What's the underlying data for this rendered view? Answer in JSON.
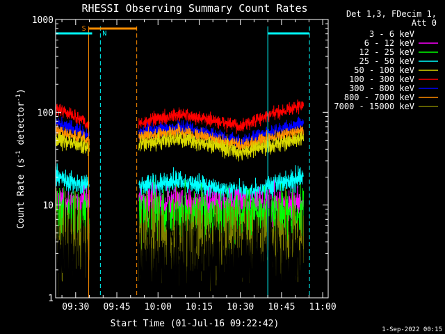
{
  "chart_data": {
    "type": "line",
    "title": "RHESSI Observing Summary Count Rates",
    "xlabel": "Start Time (01-Jul-16 09:22:42)",
    "ylabel": "Count Rate (s",
    "ylabel_sup": "-1",
    "ylabel_tail": " detector",
    "ylabel_sup2": "-1",
    "ylabel_end": ")",
    "yscale": "log",
    "ylim": [
      1,
      1000
    ],
    "y_ticks": [
      {
        "value": 1,
        "label": "1"
      },
      {
        "value": 10,
        "label": "10"
      },
      {
        "value": 100,
        "label": "100"
      },
      {
        "value": 1000,
        "label": "1000"
      }
    ],
    "xlim": [
      "09:22:42",
      "11:02:00"
    ],
    "x_ticks": [
      "09:30",
      "09:45",
      "10:00",
      "10:15",
      "10:30",
      "10:45",
      "11:00"
    ],
    "legend": {
      "placement": "right",
      "header": [
        "Det 1,3, FDecim 1,",
        "Att 0"
      ],
      "entries": [
        {
          "name": "3 - 6 keV",
          "color": "#000000"
        },
        {
          "name": "6 - 12 keV",
          "color": "#ff00ff"
        },
        {
          "name": "12 - 25 keV",
          "color": "#00ff00"
        },
        {
          "name": "25 - 50 keV",
          "color": "#00ffff"
        },
        {
          "name": "50 - 100 keV",
          "color": "#d8d800"
        },
        {
          "name": "100 - 300 keV",
          "color": "#ff0000"
        },
        {
          "name": "300 - 800 keV",
          "color": "#0000ff"
        },
        {
          "name": "800 - 7000 keV",
          "color": "#ff8c00"
        },
        {
          "name": "7000 - 15000 keV",
          "color": "#808000"
        }
      ]
    },
    "segments": [
      {
        "start": "09:22:42",
        "end": "09:35:00"
      },
      {
        "start": "09:53:00",
        "end": "10:53:00"
      }
    ],
    "series": [
      {
        "name": "100 - 300 keV",
        "color": "#ff0000",
        "profile": [
          [
            0,
            110
          ],
          [
            0.5,
            95
          ],
          [
            1,
            75
          ],
          [
            2,
            65
          ],
          [
            4,
            95
          ],
          [
            6,
            70
          ],
          [
            8,
            120
          ]
        ],
        "noise": 0.05
      },
      {
        "name": "300 - 800 keV",
        "color": "#0000ff",
        "profile": [
          [
            0,
            77
          ],
          [
            0.5,
            68
          ],
          [
            1,
            57
          ],
          [
            2,
            55
          ],
          [
            4,
            70
          ],
          [
            6,
            48
          ],
          [
            8,
            76
          ]
        ],
        "noise": 0.05
      },
      {
        "name": "800 - 7000 keV",
        "color": "#ff8c00",
        "profile": [
          [
            0,
            64
          ],
          [
            0.5,
            56
          ],
          [
            1,
            50
          ],
          [
            2,
            50
          ],
          [
            4,
            62
          ],
          [
            6,
            43
          ],
          [
            8,
            64
          ]
        ],
        "noise": 0.05
      },
      {
        "name": "50 - 100 keV",
        "color": "#d8d800",
        "profile": [
          [
            0,
            52
          ],
          [
            0.5,
            46
          ],
          [
            1,
            43
          ],
          [
            2,
            40
          ],
          [
            4,
            52
          ],
          [
            6,
            37
          ],
          [
            8,
            52
          ]
        ],
        "noise": 0.06
      },
      {
        "name": "25 - 50 keV",
        "color": "#00ffff",
        "profile": [
          [
            0,
            20
          ],
          [
            0.5,
            18
          ],
          [
            1,
            16
          ],
          [
            2,
            15
          ],
          [
            4,
            18
          ],
          [
            6,
            13
          ],
          [
            8,
            20
          ]
        ],
        "noise": 0.08
      },
      {
        "name": "6 - 12 keV",
        "color": "#ff00ff",
        "profile": [
          [
            0,
            10
          ],
          [
            8,
            10
          ]
        ],
        "noise": 0.13
      },
      {
        "name": "12 - 25 keV",
        "color": "#00ff00",
        "profile": [
          [
            0,
            7.5
          ],
          [
            8,
            7.5
          ]
        ],
        "noise": 0.2
      },
      {
        "name": "7000 - 15000 keV",
        "color": "#808000",
        "profile": [
          [
            0,
            4
          ],
          [
            8,
            4
          ]
        ],
        "noise": 0.32
      },
      {
        "name": "3 - 6 keV",
        "color": "#000000",
        "profile": [
          [
            0,
            2.3
          ],
          [
            8,
            2.3
          ]
        ],
        "noise": 0.45
      }
    ],
    "flags": [
      {
        "label": "S",
        "color": "#ff8c00",
        "bar": [
          "09:34:45",
          "09:52:15"
        ]
      },
      {
        "label": "N",
        "color": "#00ffff",
        "bar": null
      },
      {
        "label": "",
        "color": "#00ffff",
        "bar": [
          "09:22:42",
          "09:36:00"
        ]
      },
      {
        "label": "",
        "color": "#00ffff",
        "bar": [
          "10:40:00",
          "10:55:10"
        ]
      }
    ],
    "markers": [
      {
        "time": "09:34:45",
        "color": "#ff8c00",
        "style": "solid"
      },
      {
        "time": "09:52:15",
        "color": "#ff8c00",
        "style": "dashed"
      },
      {
        "time": "09:39:00",
        "color": "#00ffff",
        "style": "dashed"
      },
      {
        "time": "10:40:00",
        "color": "#00ffff",
        "style": "solid"
      },
      {
        "time": "10:55:10",
        "color": "#00ffff",
        "style": "dashed"
      },
      {
        "time": "09:22:42",
        "color": "#00ffff",
        "style": "solid"
      }
    ],
    "footer": "1-Sep-2022 00:15"
  }
}
